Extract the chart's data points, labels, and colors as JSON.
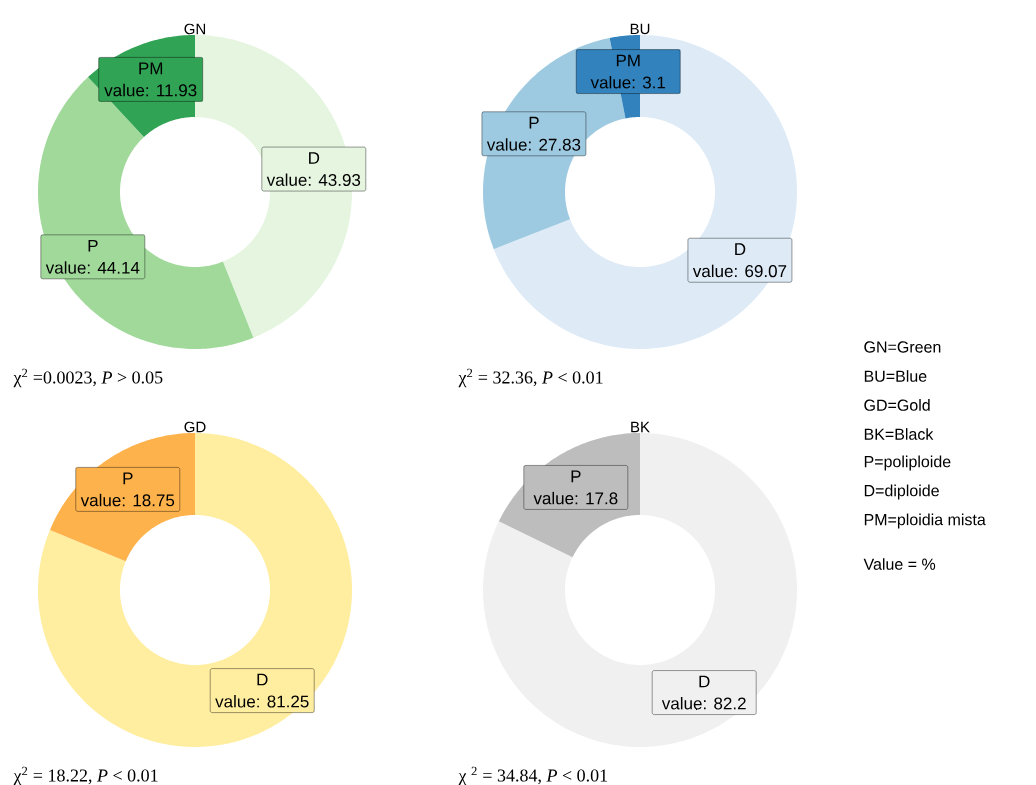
{
  "chart_data": [
    {
      "type": "donut",
      "title": "GN",
      "categories": [
        "D",
        "P",
        "PM"
      ],
      "values": [
        43.93,
        44.14,
        11.93
      ],
      "colors": [
        "#e5f5e0",
        "#a1d99b",
        "#31a354"
      ],
      "value_labels": [
        "value: 43.93",
        "value: 44.14",
        "value: 11.93"
      ],
      "annotations": [
        "χ$^{2}$ =0.0023, *P* > 0.05"
      ]
    },
    {
      "type": "donut",
      "title": "BU",
      "categories": [
        "D",
        "P",
        "PM"
      ],
      "values": [
        69.07,
        27.83,
        3.1
      ],
      "colors": [
        "#deebf7",
        "#9ecae1",
        "#3182bd"
      ],
      "value_labels": [
        "value: 69.07",
        "value: 27.83",
        "value: 3.1"
      ],
      "annotations": [
        "χ$^{2}$ = 32.36, *P* < 0.01"
      ]
    },
    {
      "type": "donut",
      "title": "GD",
      "categories": [
        "D",
        "P"
      ],
      "values": [
        81.25,
        18.75
      ],
      "colors": [
        "#ffeda0",
        "#feb24c"
      ],
      "value_labels": [
        "value: 81.25",
        "value: 18.75"
      ],
      "annotations": [
        "χ$^{2}$ = 18.22, *P* < 0.01"
      ]
    },
    {
      "type": "donut",
      "title": "BK",
      "categories": [
        "D",
        "P"
      ],
      "values": [
        82.2,
        17.8
      ],
      "colors": [
        "#f0f0f0",
        "#bdbdbd"
      ],
      "value_labels": [
        "value: 82.2",
        "value: 17.8"
      ],
      "annotations": [
        "χ $^{2}$ = 34.84, *P* < 0.01"
      ]
    },
    {
      "type": "other",
      "annotations": [
        "GN=Green",
        "BU=Blue",
        "GD=Gold",
        "BK=Black",
        "P=poliploide",
        "D=diploide",
        "PM=ploidia mista",
        "Value = %"
      ]
    }
  ]
}
